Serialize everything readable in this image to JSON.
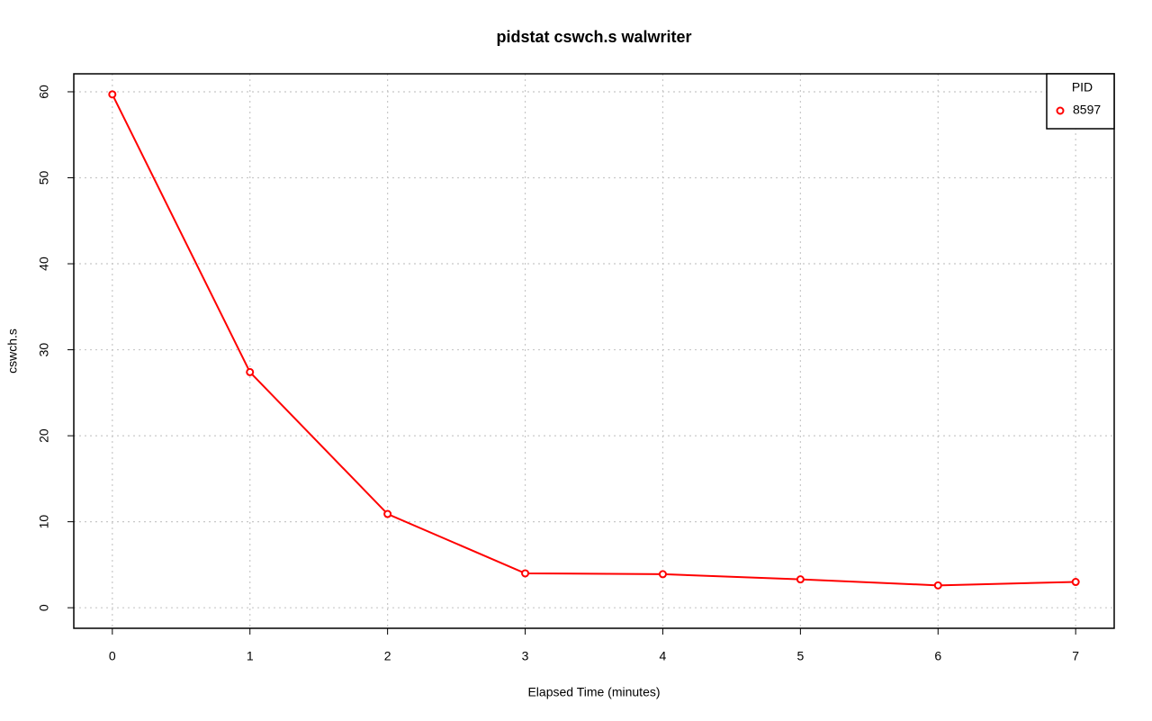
{
  "chart_data": {
    "type": "line",
    "title": "pidstat cswch.s walwriter",
    "x_label": "Elapsed Time (minutes)",
    "y_label": "cswch.s",
    "x": [
      0,
      1,
      2,
      3,
      4,
      5,
      6,
      7
    ],
    "series": [
      {
        "name": "8597",
        "color": "#ff0000",
        "values": [
          59.7,
          27.4,
          10.9,
          4.0,
          3.9,
          3.3,
          2.6,
          3.0
        ]
      }
    ],
    "legend_title": "PID",
    "legend_position": "top-right",
    "xlim": [
      -0.28,
      7.28
    ],
    "xticks": [
      0,
      1,
      2,
      3,
      4,
      5,
      6,
      7
    ],
    "ylim": [
      -2.39,
      62.09
    ],
    "yticks": [
      0,
      10,
      20,
      30,
      40,
      50,
      60
    ],
    "grid": true
  }
}
